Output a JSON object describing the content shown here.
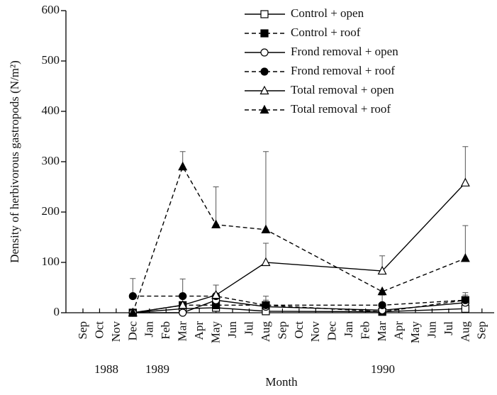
{
  "chart_data": {
    "type": "line",
    "ylabel": "Density of herbivorous gastropods (N/m²)",
    "xlabel": "Month",
    "categories": [
      {
        "value": "1988-09",
        "label": "Sep"
      },
      {
        "value": "1988-10",
        "label": "Oct"
      },
      {
        "value": "1988-11",
        "label": "Nov"
      },
      {
        "value": "1988-12",
        "label": "Dec"
      },
      {
        "value": "1989-01",
        "label": "Jan"
      },
      {
        "value": "1989-02",
        "label": "Feb"
      },
      {
        "value": "1989-03",
        "label": "Mar"
      },
      {
        "value": "1989-04",
        "label": "Apr"
      },
      {
        "value": "1989-05",
        "label": "May"
      },
      {
        "value": "1989-06",
        "label": "Jun"
      },
      {
        "value": "1989-07",
        "label": "Jul"
      },
      {
        "value": "1989-08",
        "label": "Aug"
      },
      {
        "value": "1989-09",
        "label": "Sep"
      },
      {
        "value": "1989-10",
        "label": "Oct"
      },
      {
        "value": "1989-11",
        "label": "Nov"
      },
      {
        "value": "1989-12",
        "label": "Dec"
      },
      {
        "value": "1990-01",
        "label": "Jan"
      },
      {
        "value": "1990-02",
        "label": "Feb"
      },
      {
        "value": "1990-03",
        "label": "Mar"
      },
      {
        "value": "1990-04",
        "label": "Apr"
      },
      {
        "value": "1990-05",
        "label": "May"
      },
      {
        "value": "1990-06",
        "label": "Jun"
      },
      {
        "value": "1990-07",
        "label": "Jul"
      },
      {
        "value": "1990-08",
        "label": "Aug"
      },
      {
        "value": "1990-09",
        "label": "Sep"
      }
    ],
    "years": [
      "1988",
      "1989",
      "1990"
    ],
    "x": [
      "1988-12",
      "1989-03",
      "1989-05",
      "1989-08",
      "1990-03",
      "1990-08"
    ],
    "series": [
      {
        "name": "Control + open",
        "color": "#000000",
        "dashed": false,
        "marker": "square",
        "filled": false,
        "values": [
          0,
          8,
          10,
          3,
          2,
          8
        ],
        "errors": [
          null,
          null,
          null,
          null,
          null,
          null
        ]
      },
      {
        "name": "Control + roof",
        "color": "#000000",
        "dashed": true,
        "marker": "square",
        "filled": true,
        "values": [
          0,
          15,
          15,
          15,
          2,
          25
        ],
        "errors": [
          null,
          null,
          40,
          18,
          10,
          15
        ]
      },
      {
        "name": "Frond removal + open",
        "color": "#000000",
        "dashed": false,
        "marker": "circle",
        "filled": false,
        "values": [
          0,
          0,
          25,
          12,
          5,
          20
        ],
        "errors": [
          null,
          null,
          null,
          null,
          null,
          null
        ]
      },
      {
        "name": "Frond removal + roof",
        "color": "#000000",
        "dashed": true,
        "marker": "circle",
        "filled": true,
        "values": [
          33,
          33,
          33,
          15,
          15,
          25
        ],
        "errors": [
          35,
          34,
          22,
          10,
          20,
          10
        ]
      },
      {
        "name": "Total removal + open",
        "color": "#000000",
        "dashed": false,
        "marker": "triangle",
        "filled": false,
        "values": [
          0,
          15,
          35,
          100,
          83,
          258
        ],
        "errors": [
          null,
          null,
          null,
          38,
          30,
          72
        ]
      },
      {
        "name": "Total removal + roof",
        "color": "#000000",
        "dashed": true,
        "marker": "triangle",
        "filled": true,
        "values": [
          0,
          290,
          175,
          165,
          42,
          108
        ],
        "errors": [
          null,
          30,
          75,
          155,
          null,
          65
        ]
      }
    ],
    "ylim": [
      0,
      600
    ],
    "yticks": [
      0,
      100,
      200,
      300,
      400,
      500,
      600
    ],
    "legend": "top-right"
  }
}
